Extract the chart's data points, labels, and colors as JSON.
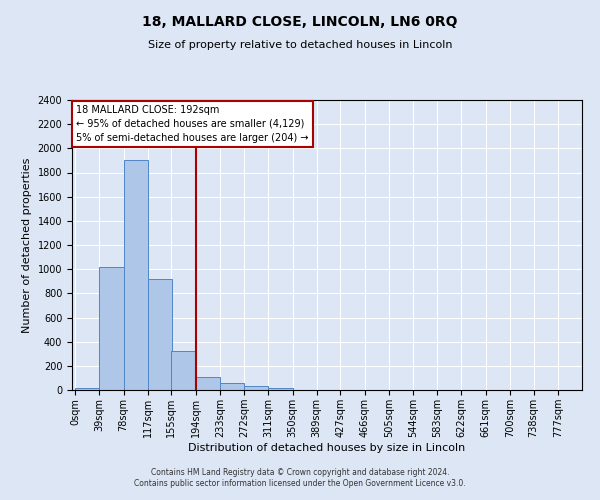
{
  "title": "18, MALLARD CLOSE, LINCOLN, LN6 0RQ",
  "subtitle": "Size of property relative to detached houses in Lincoln",
  "xlabel": "Distribution of detached houses by size in Lincoln",
  "ylabel": "Number of detached properties",
  "bin_labels": [
    "0sqm",
    "39sqm",
    "78sqm",
    "117sqm",
    "155sqm",
    "194sqm",
    "233sqm",
    "272sqm",
    "311sqm",
    "350sqm",
    "389sqm",
    "427sqm",
    "466sqm",
    "505sqm",
    "544sqm",
    "583sqm",
    "622sqm",
    "661sqm",
    "700sqm",
    "738sqm",
    "777sqm"
  ],
  "bin_edges": [
    0,
    39,
    78,
    117,
    155,
    194,
    233,
    272,
    311,
    350,
    389,
    427,
    466,
    505,
    544,
    583,
    622,
    661,
    700,
    738,
    777
  ],
  "bar_heights": [
    20,
    1020,
    1900,
    920,
    320,
    110,
    55,
    30,
    20,
    0,
    0,
    0,
    0,
    0,
    0,
    0,
    0,
    0,
    0,
    0
  ],
  "bar_color": "#aec6e8",
  "bar_edge_color": "#4f86c6",
  "vline_x": 194,
  "vline_color": "#aa0000",
  "annotation_title": "18 MALLARD CLOSE: 192sqm",
  "annotation_line1": "← 95% of detached houses are smaller (4,129)",
  "annotation_line2": "5% of semi-detached houses are larger (204) →",
  "annotation_box_facecolor": "#ffffff",
  "annotation_box_edgecolor": "#aa0000",
  "ylim": [
    0,
    2400
  ],
  "yticks": [
    0,
    200,
    400,
    600,
    800,
    1000,
    1200,
    1400,
    1600,
    1800,
    2000,
    2200,
    2400
  ],
  "footer_line1": "Contains HM Land Registry data © Crown copyright and database right 2024.",
  "footer_line2": "Contains public sector information licensed under the Open Government Licence v3.0.",
  "background_color": "#dce6f5",
  "plot_bg_color": "#dce6f5",
  "grid_color": "#ffffff",
  "title_fontsize": 10,
  "subtitle_fontsize": 8,
  "xlabel_fontsize": 8,
  "ylabel_fontsize": 8,
  "tick_fontsize": 7,
  "footer_fontsize": 5.5
}
